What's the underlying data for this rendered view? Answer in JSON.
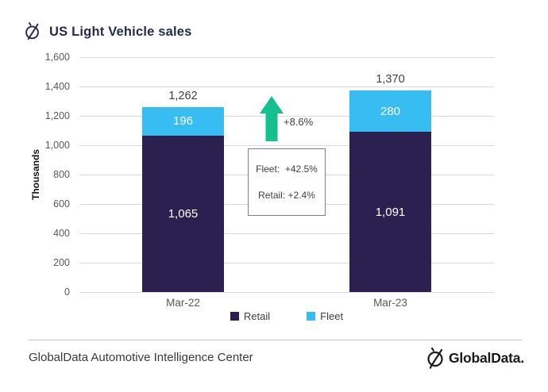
{
  "header": {
    "title": "US Light Vehicle sales"
  },
  "chart_data": {
    "type": "bar",
    "stacked": true,
    "title": "US Light Vehicle sales",
    "categories": [
      "Mar-22",
      "Mar-23"
    ],
    "series": [
      {
        "name": "Retail",
        "color": "#2b2050",
        "values": [
          1065,
          1091
        ]
      },
      {
        "name": "Fleet",
        "color": "#38bdf2",
        "values": [
          196,
          280
        ]
      }
    ],
    "totals": [
      1262,
      1370
    ],
    "ylabel": "Thousands",
    "xlabel": "",
    "ylim": [
      0,
      1600
    ],
    "ytick_step": 200,
    "grid": true,
    "legend_position": "bottom"
  },
  "annotations": {
    "growth_arrow": {
      "label": "+8.6%",
      "color": "#14c18e",
      "direction": "up"
    },
    "growth_box": {
      "lines": [
        "Fleet:  +42.5%",
        "Retail: +2.4%"
      ]
    }
  },
  "footer": {
    "source": "GlobalData Automotive Intelligence Center",
    "brand": "GlobalData."
  }
}
